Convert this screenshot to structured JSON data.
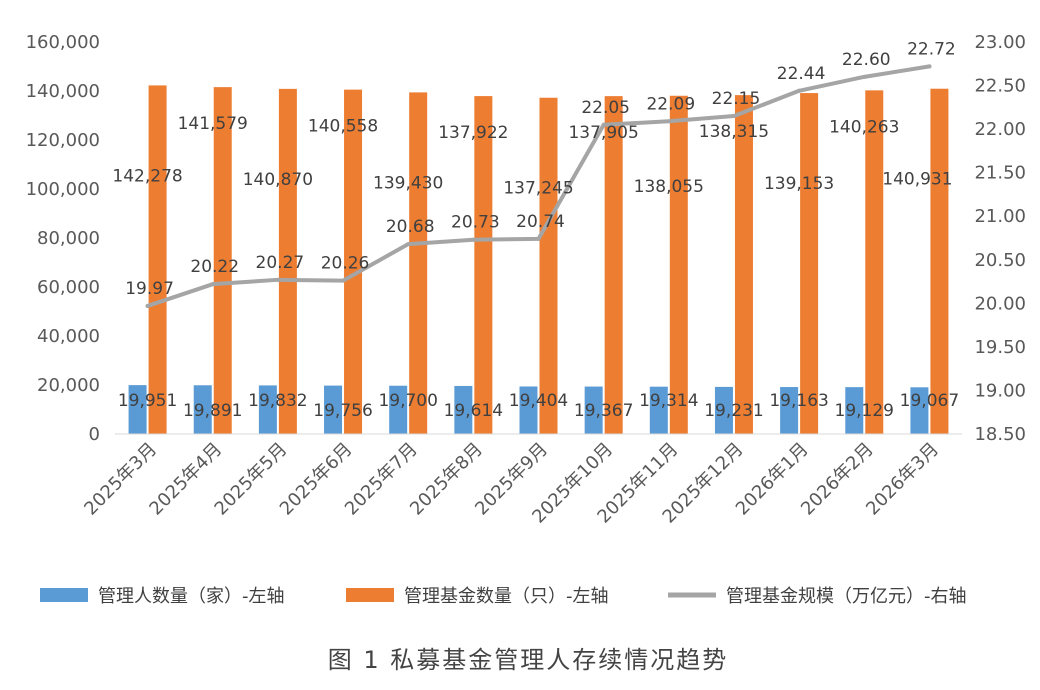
{
  "chart_data": {
    "type": "bar+line",
    "categories": [
      "2025年3月",
      "2025年4月",
      "2025年5月",
      "2025年6月",
      "2025年7月",
      "2025年8月",
      "2025年9月",
      "2025年10月",
      "2025年11月",
      "2025年12月",
      "2026年1月",
      "2026年2月",
      "2026年3月"
    ],
    "series": [
      {
        "name": "管理人数量（家）-左轴",
        "type": "bar",
        "axis": "left",
        "color": "#5B9BD5",
        "values": [
          19951,
          19891,
          19832,
          19756,
          19700,
          19614,
          19404,
          19367,
          19314,
          19231,
          19163,
          19129,
          19067
        ],
        "labels": [
          "19,951",
          "19,891",
          "19,832",
          "19,756",
          "19,700",
          "19,614",
          "19,404",
          "19,367",
          "19,314",
          "19,231",
          "19,163",
          "19,129",
          "19,067"
        ]
      },
      {
        "name": "管理基金数量（只）-左轴",
        "type": "bar",
        "axis": "left",
        "color": "#ED7D31",
        "values": [
          142278,
          141579,
          140870,
          140558,
          139430,
          137922,
          137245,
          137905,
          138055,
          138315,
          139153,
          140263,
          140931
        ],
        "labels": [
          "142,278",
          "141,579",
          "140,870",
          "140,558",
          "139,430",
          "137,922",
          "137,245",
          "137,905",
          "138,055",
          "138,315",
          "139,153",
          "140,263",
          "140,931"
        ]
      },
      {
        "name": "管理基金规模（万亿元）-右轴",
        "type": "line",
        "axis": "right",
        "color": "#A5A5A5",
        "values": [
          19.97,
          20.22,
          20.27,
          20.26,
          20.68,
          20.73,
          20.74,
          22.05,
          22.09,
          22.15,
          22.44,
          22.6,
          22.72
        ],
        "labels": [
          "19.97",
          "20.22",
          "20.27",
          "20.26",
          "20.68",
          "20.73",
          "20.74",
          "22.05",
          "22.09",
          "22.15",
          "22.44",
          "22.60",
          "22.72"
        ]
      }
    ],
    "left_axis": {
      "range": [
        0,
        160000
      ],
      "ticks": [
        "0",
        "20,000",
        "40,000",
        "60,000",
        "80,000",
        "100,000",
        "120,000",
        "140,000",
        "160,000"
      ]
    },
    "right_axis": {
      "range": [
        18.5,
        23.0
      ],
      "ticks": [
        "18.50",
        "19.00",
        "19.50",
        "20.00",
        "20.50",
        "21.00",
        "21.50",
        "22.00",
        "22.50",
        "23.00"
      ]
    },
    "legend_position": "bottom",
    "grid": false,
    "caption": "图 1  私募基金管理人存续情况趋势"
  }
}
